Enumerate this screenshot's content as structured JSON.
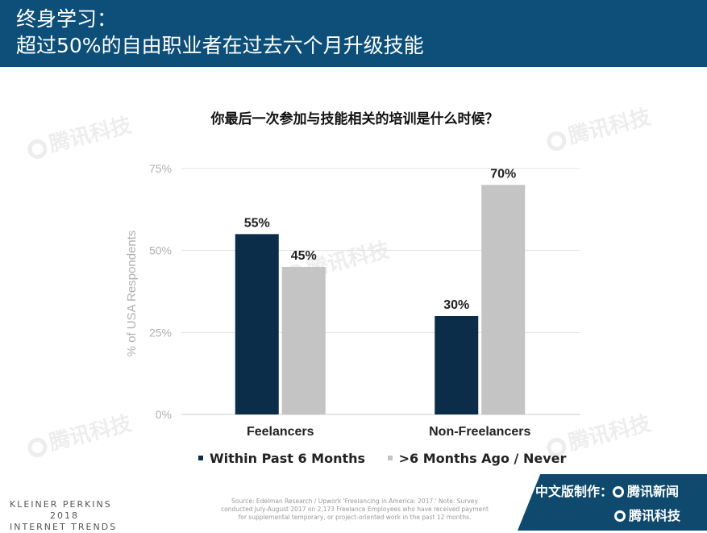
{
  "header": {
    "line1": "终身学习：",
    "line2": "超过50%的自由职业者在过去六个月升级技能"
  },
  "watermark": {
    "text": "腾讯科技"
  },
  "chart_data": {
    "type": "bar",
    "title": "你最后一次参加与技能相关的培训是什么时候？",
    "categories": [
      "Feelancers",
      "Non-Freelancers"
    ],
    "series": [
      {
        "name": "Within Past 6 Months",
        "values": [
          55,
          30
        ],
        "labels": [
          "55%",
          "30%"
        ],
        "color": "#0c2d4a"
      },
      {
        "name": ">6 Months Ago / Never",
        "values": [
          45,
          70
        ],
        "labels": [
          "45%",
          "70%"
        ],
        "color": "#c4c4c4"
      }
    ],
    "ylabel": "% of USA Respondents",
    "xlabel": "",
    "ylim": [
      0,
      75
    ],
    "yticks": [
      0,
      25,
      50,
      75
    ],
    "ytick_labels": [
      "0%",
      "25%",
      "50%",
      "75%"
    ],
    "grid": true,
    "legend_position": "bottom"
  },
  "footer": {
    "brand_line1": "KLEINER PERKINS",
    "brand_line2": "2018",
    "brand_line3": "INTERNET TRENDS",
    "source": "Source: Edelman Research / Upwork 'Freelancing in America: 2017.' Note: Survey conducted July-August 2017 on 2,173 Freelance Employees who have received payment for supplemental temporary, or project-oriented work in the past 12 months.",
    "credit_label": "中文版制作：",
    "credit_name1": "腾讯新闻",
    "credit_name2": "腾讯科技"
  }
}
